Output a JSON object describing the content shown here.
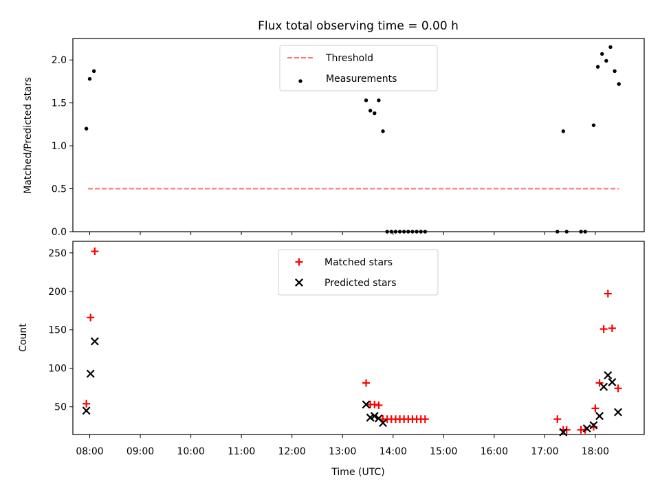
{
  "chart_data": [
    {
      "type": "scatter",
      "title": "Flux total observing time = 0.00 h",
      "xlabel": "",
      "ylabel": "Matched/Predicted stars",
      "xlim": [
        "07:40",
        "18:58"
      ],
      "ylim": [
        0,
        2.25
      ],
      "yticks": [
        0.0,
        0.5,
        1.0,
        1.5,
        2.0
      ],
      "ytick_labels": [
        "0.0",
        "0.5",
        "1.0",
        "1.5",
        "2.0"
      ],
      "legend": {
        "placement": "top-center",
        "entries": [
          "Threshold",
          "Measurements"
        ]
      },
      "series": [
        {
          "name": "Threshold",
          "style": "dashed-line",
          "color": "#ff7070",
          "points": [
            [
              "07:58",
              0.5
            ],
            [
              "18:28",
              0.5
            ]
          ]
        },
        {
          "name": "Measurements",
          "style": "dot",
          "color": "#000000",
          "points": [
            [
              "07:56",
              1.2
            ],
            [
              "08:00",
              1.78
            ],
            [
              "08:05",
              1.87
            ],
            [
              "13:28",
              1.53
            ],
            [
              "13:33",
              1.41
            ],
            [
              "13:38",
              1.38
            ],
            [
              "13:43",
              1.53
            ],
            [
              "13:48",
              1.17
            ],
            [
              "13:53",
              0.0
            ],
            [
              "13:58",
              0.0
            ],
            [
              "14:03",
              0.0
            ],
            [
              "14:08",
              0.0
            ],
            [
              "14:13",
              0.0
            ],
            [
              "14:18",
              0.0
            ],
            [
              "14:23",
              0.0
            ],
            [
              "14:28",
              0.0
            ],
            [
              "14:33",
              0.0
            ],
            [
              "14:38",
              0.0
            ],
            [
              "17:15",
              0.0
            ],
            [
              "17:22",
              1.17
            ],
            [
              "17:26",
              0.0
            ],
            [
              "17:43",
              0.0
            ],
            [
              "17:48",
              0.0
            ],
            [
              "17:58",
              1.24
            ],
            [
              "18:03",
              1.92
            ],
            [
              "18:08",
              2.07
            ],
            [
              "18:13",
              1.99
            ],
            [
              "18:18",
              2.15
            ],
            [
              "18:23",
              1.87
            ],
            [
              "18:28",
              1.72
            ]
          ]
        }
      ]
    },
    {
      "type": "scatter",
      "title": "",
      "xlabel": "Time (UTC)",
      "ylabel": "Count",
      "xlim": [
        "07:40",
        "18:58"
      ],
      "ylim": [
        14,
        265
      ],
      "yticks": [
        50,
        100,
        150,
        200,
        250
      ],
      "ytick_labels": [
        "50",
        "100",
        "150",
        "200",
        "250"
      ],
      "xticks": [
        "08:00",
        "09:00",
        "10:00",
        "11:00",
        "12:00",
        "13:00",
        "14:00",
        "15:00",
        "16:00",
        "17:00",
        "18:00"
      ],
      "legend": {
        "placement": "top-center",
        "entries": [
          "Matched stars",
          "Predicted stars"
        ]
      },
      "series": [
        {
          "name": "Matched stars",
          "marker": "plus",
          "color": "#ff0000",
          "points": [
            [
              "07:56",
              54
            ],
            [
              "08:01",
              166
            ],
            [
              "08:06",
              252
            ],
            [
              "13:28",
              81
            ],
            [
              "13:33",
              53
            ],
            [
              "13:38",
              53
            ],
            [
              "13:43",
              52
            ],
            [
              "13:48",
              34
            ],
            [
              "13:53",
              34
            ],
            [
              "13:58",
              34
            ],
            [
              "14:03",
              34
            ],
            [
              "14:08",
              34
            ],
            [
              "14:13",
              34
            ],
            [
              "14:18",
              34
            ],
            [
              "14:23",
              34
            ],
            [
              "14:28",
              34
            ],
            [
              "14:33",
              34
            ],
            [
              "14:38",
              34
            ],
            [
              "17:15",
              34
            ],
            [
              "17:22",
              20
            ],
            [
              "17:26",
              20
            ],
            [
              "17:43",
              20
            ],
            [
              "17:48",
              20
            ],
            [
              "17:58",
              24
            ],
            [
              "18:00",
              48
            ],
            [
              "18:05",
              81
            ],
            [
              "18:10",
              151
            ],
            [
              "18:15",
              197
            ],
            [
              "18:20",
              152
            ],
            [
              "18:27",
              74
            ]
          ]
        },
        {
          "name": "Predicted stars",
          "marker": "x",
          "color": "#000000",
          "points": [
            [
              "07:56",
              45
            ],
            [
              "08:01",
              93
            ],
            [
              "08:06",
              135
            ],
            [
              "13:28",
              53
            ],
            [
              "13:33",
              36
            ],
            [
              "13:38",
              38
            ],
            [
              "13:43",
              35
            ],
            [
              "13:48",
              29
            ],
            [
              "17:22",
              17
            ],
            [
              "17:50",
              22
            ],
            [
              "17:58",
              26
            ],
            [
              "18:05",
              38
            ],
            [
              "18:10",
              76
            ],
            [
              "18:15",
              91
            ],
            [
              "18:20",
              82
            ],
            [
              "18:27",
              43
            ]
          ]
        }
      ]
    }
  ]
}
